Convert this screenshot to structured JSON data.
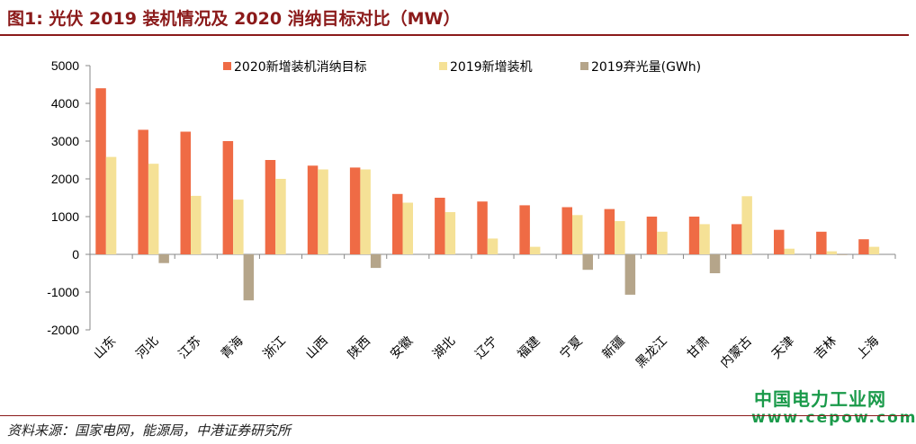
{
  "title": "图1:  光伏 2019 装机情况及 2020 消纳目标对比（MW）",
  "source": "资料来源：国家电网，能源局，中港证券研究所",
  "watermark": {
    "name": "中国电力工业网",
    "url": "www.cepow.com"
  },
  "colors": {
    "title": "#8b1a1a",
    "series": [
      "#ef6b45",
      "#f5e196",
      "#b5a58a"
    ],
    "watermark": "#1a9a4a"
  },
  "chart_data": {
    "type": "bar",
    "ylim": [
      -2000,
      5000
    ],
    "yticks": [
      -2000,
      -1000,
      0,
      1000,
      2000,
      3000,
      4000,
      5000
    ],
    "legend_position": "top",
    "categories": [
      "山东",
      "河北",
      "江苏",
      "青海",
      "浙江",
      "山西",
      "陕西",
      "安徽",
      "湖北",
      "辽宁",
      "福建",
      "宁夏",
      "新疆",
      "黑龙江",
      "甘肃",
      "内蒙古",
      "天津",
      "吉林",
      "上海"
    ],
    "series": [
      {
        "name": "2020新增装机消纳目标",
        "values": [
          4400,
          3300,
          3250,
          3000,
          2500,
          2350,
          2300,
          1600,
          1500,
          1400,
          1300,
          1250,
          1200,
          1000,
          1000,
          800,
          650,
          600,
          400
        ]
      },
      {
        "name": "2019新增装机",
        "values": [
          2580,
          2400,
          1550,
          1450,
          2000,
          2250,
          2250,
          1370,
          1120,
          420,
          200,
          1040,
          880,
          600,
          800,
          1540,
          150,
          80,
          200
        ]
      },
      {
        "name": "2019弃光量(GWh)",
        "values": [
          0,
          -230,
          0,
          -1220,
          0,
          0,
          -360,
          0,
          0,
          0,
          0,
          -410,
          -1070,
          0,
          -500,
          0,
          0,
          -20,
          0
        ]
      }
    ]
  }
}
